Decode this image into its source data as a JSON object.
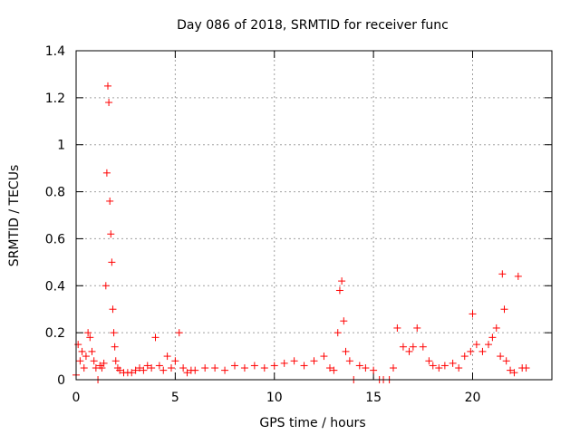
{
  "chart_data": {
    "type": "scatter",
    "title": "Day 086 of 2018, SRMTID for receiver func",
    "xlabel": "GPS time / hours",
    "ylabel": "SRMTID / TECUs",
    "xlim": [
      0,
      24
    ],
    "ylim": [
      0,
      1.4
    ],
    "xticks": [
      0,
      5,
      10,
      15,
      20
    ],
    "xtick_labels": [
      "0",
      "5",
      "10",
      "15",
      "20"
    ],
    "yticks": [
      0,
      0.2,
      0.4,
      0.6,
      0.8,
      1.0,
      1.2,
      1.4
    ],
    "ytick_labels": [
      "0",
      "0.2",
      "0.4",
      "0.6",
      "0.8",
      "1",
      "1.2",
      "1.4"
    ],
    "grid": true,
    "marker": "+",
    "color": "#ff0000",
    "series": [
      {
        "name": "SRMTID",
        "x": [
          0.0,
          0.1,
          0.2,
          0.3,
          0.4,
          0.5,
          0.6,
          0.7,
          0.8,
          0.9,
          1.0,
          1.1,
          1.2,
          1.3,
          1.4,
          1.5,
          1.55,
          1.6,
          1.65,
          1.7,
          1.75,
          1.8,
          1.85,
          1.9,
          1.95,
          2.0,
          2.1,
          2.2,
          2.4,
          2.6,
          2.8,
          3.0,
          3.2,
          3.4,
          3.6,
          3.8,
          4.0,
          4.2,
          4.4,
          4.6,
          4.8,
          5.0,
          5.2,
          5.4,
          5.6,
          5.8,
          6.0,
          6.5,
          7.0,
          7.5,
          8.0,
          8.5,
          9.0,
          9.5,
          10.0,
          10.5,
          11.0,
          11.5,
          12.0,
          12.5,
          12.8,
          13.0,
          13.2,
          13.3,
          13.4,
          13.5,
          13.6,
          13.8,
          14.0,
          14.3,
          14.6,
          15.0,
          15.3,
          15.5,
          15.8,
          16.0,
          16.2,
          16.5,
          16.8,
          17.0,
          17.2,
          17.5,
          17.8,
          18.0,
          18.3,
          18.6,
          19.0,
          19.3,
          19.6,
          19.9,
          20.0,
          20.2,
          20.5,
          20.8,
          21.0,
          21.2,
          21.4,
          21.5,
          21.6,
          21.7,
          21.9,
          22.1,
          22.3,
          22.5,
          22.7
        ],
        "y": [
          0.02,
          0.15,
          0.08,
          0.12,
          0.05,
          0.1,
          0.2,
          0.18,
          0.12,
          0.08,
          0.05,
          0.0,
          0.06,
          0.05,
          0.07,
          0.4,
          0.88,
          1.25,
          1.18,
          0.76,
          0.62,
          0.5,
          0.3,
          0.2,
          0.14,
          0.08,
          0.05,
          0.04,
          0.03,
          0.03,
          0.03,
          0.04,
          0.05,
          0.04,
          0.06,
          0.05,
          0.18,
          0.06,
          0.04,
          0.1,
          0.05,
          0.08,
          0.2,
          0.05,
          0.03,
          0.04,
          0.04,
          0.05,
          0.05,
          0.04,
          0.06,
          0.05,
          0.06,
          0.05,
          0.06,
          0.07,
          0.08,
          0.06,
          0.08,
          0.1,
          0.05,
          0.04,
          0.2,
          0.38,
          0.42,
          0.25,
          0.12,
          0.08,
          0.0,
          0.06,
          0.05,
          0.04,
          0.0,
          0.0,
          0.0,
          0.05,
          0.22,
          0.14,
          0.12,
          0.14,
          0.22,
          0.14,
          0.08,
          0.06,
          0.05,
          0.06,
          0.07,
          0.05,
          0.1,
          0.12,
          0.28,
          0.15,
          0.12,
          0.15,
          0.18,
          0.22,
          0.1,
          0.45,
          0.3,
          0.08,
          0.04,
          0.03,
          0.44,
          0.05,
          0.05
        ]
      }
    ]
  }
}
